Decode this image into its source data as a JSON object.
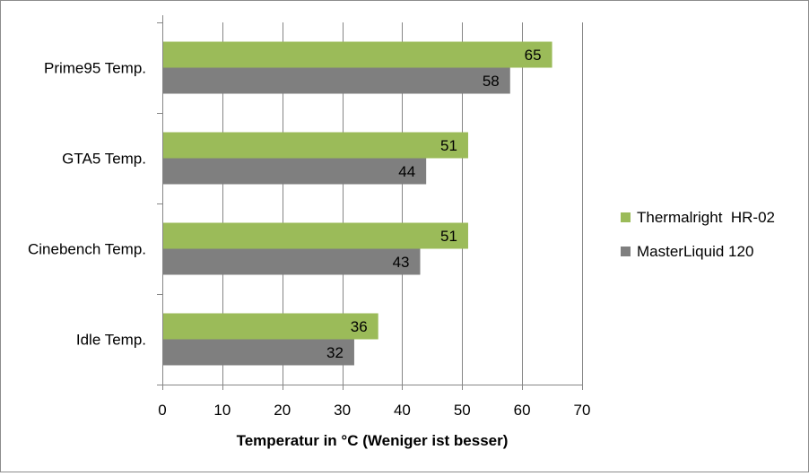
{
  "chart_data": {
    "type": "bar",
    "orientation": "horizontal",
    "categories": [
      "Prime95 Temp.",
      "GTA5 Temp.",
      "Cinebench Temp.",
      "Idle Temp."
    ],
    "series": [
      {
        "name": "Thermalright  HR-02",
        "color": "#9bbb59",
        "values": [
          65,
          51,
          51,
          36
        ]
      },
      {
        "name": "MasterLiquid 120",
        "color": "#7f7f7f",
        "values": [
          58,
          44,
          43,
          32
        ]
      }
    ],
    "xlabel": "Temperatur in °C (Weniger ist besser)",
    "ylabel": "",
    "xlim": [
      0,
      70
    ],
    "xticks": [
      0,
      10,
      20,
      30,
      40,
      50,
      60,
      70
    ],
    "grid": "vertical",
    "legend_position": "right",
    "data_labels": true
  }
}
